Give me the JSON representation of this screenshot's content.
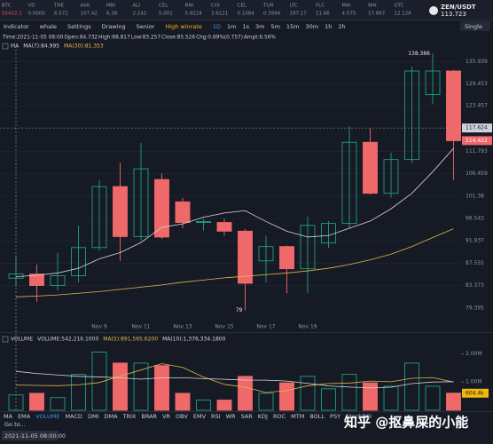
{
  "ticker_strip": [
    {
      "symbol": "BTC",
      "price": "55432.1"
    },
    {
      "symbol": "VD",
      "price": "0.0000"
    },
    {
      "symbol": "THE",
      "price": "6.572"
    },
    {
      "symbol": "AVA",
      "price": "107.42"
    },
    {
      "symbol": "MBI",
      "price": "6.38"
    },
    {
      "symbol": "ALI",
      "price": "2.242"
    },
    {
      "symbol": "CEL",
      "price": "5.001"
    },
    {
      "symbol": "RNI",
      "price": "5.8224"
    },
    {
      "symbol": "COI",
      "price": "3.6121"
    },
    {
      "symbol": "CEL",
      "price": "0.1084"
    },
    {
      "symbol": "TLM",
      "price": "0.3994"
    },
    {
      "symbol": "LTC",
      "price": "197.17"
    },
    {
      "symbol": "FLC",
      "price": "11.66"
    },
    {
      "symbol": "MAI",
      "price": "4.575"
    },
    {
      "symbol": "WH",
      "price": "17.867"
    },
    {
      "symbol": "GTC",
      "price": "12.128"
    }
  ],
  "header": {
    "pair": "ZEN/USDT",
    "price": "113.723"
  },
  "toolbar": {
    "items": [
      "Indicator",
      "whale",
      "Settings",
      "Drawing",
      "Senior",
      "High winrate",
      "1D",
      "1m",
      "1s",
      "3m",
      "5m",
      "15m",
      "30m",
      "1h",
      "2h"
    ],
    "mode": "Single"
  },
  "info": [
    "Time:2021-11-05 08:00",
    "Open:84.732",
    "High:88.817",
    "Low:83.257",
    "Close:85.526",
    "Chg:0.89%(0.757)",
    "Ampt:6.56%"
  ],
  "indicator_tabs": [
    "MA",
    "EMA",
    "VOLUME",
    "MACD",
    "DMI",
    "DMA",
    "TRIX",
    "BRAR",
    "VR",
    "OBV",
    "EMV",
    "RSI",
    "WR",
    "SAR",
    "KDJ",
    "ROC",
    "MTM",
    "BOLL",
    "PSY",
    "StochRSI"
  ],
  "footer": {
    "time": "2021-11-05 08:00:00",
    "goto": "Go to..."
  },
  "watermark": "知乎 @抠鼻屎的小能",
  "chart_data": [
    {
      "type": "candlestick",
      "legend_title": "MA",
      "categories": [
        null,
        null,
        null,
        null,
        "Nov 9",
        null,
        "Nov 11",
        null,
        "Nov 13",
        null,
        "Nov 15",
        null,
        "Nov 17",
        null,
        "Nov 19",
        null,
        null,
        null,
        null,
        null,
        null,
        null
      ],
      "open": [
        84.732,
        85.5,
        83.4,
        85.2,
        90.6,
        103.5,
        92.8,
        105.1,
        100.1,
        95.7,
        95.7,
        93.9,
        88.0,
        90.8,
        86.5,
        91.5,
        95.5,
        114.0,
        102.0,
        109.8,
        126.5,
        133.2
      ],
      "high": [
        88.817,
        87.3,
        89.6,
        95.0,
        105.0,
        109.0,
        113.8,
        106.5,
        101.0,
        96.5,
        96.5,
        94.3,
        93.0,
        91.0,
        97.0,
        96.0,
        118.0,
        117.6,
        111.5,
        134.5,
        138.366,
        133.5
      ],
      "low": [
        83.257,
        80.5,
        82.5,
        84.0,
        90.0,
        88.0,
        92.0,
        92.3,
        94.5,
        94.0,
        93.0,
        79,
        84.0,
        82.0,
        82.0,
        90.5,
        94.5,
        101.7,
        101.0,
        109.0,
        124.0,
        105.0
      ],
      "close": [
        85.526,
        83.4,
        85.2,
        90.6,
        103.5,
        92.8,
        107.6,
        92.7,
        95.7,
        95.9,
        93.9,
        83.8,
        90.8,
        86.5,
        95.1,
        95.5,
        114.0,
        102.0,
        109.8,
        133.2,
        133.2,
        114.422
      ],
      "up_color": "#1f9f80",
      "down_color": "#f0696a",
      "ma_lines": [
        {
          "legend": "MA(7):84.995",
          "color": "#d8d8d8",
          "values": [
            84.995,
            85.3,
            85.7,
            86.6,
            88.4,
            89.6,
            91.6,
            94.7,
            95.4,
            96.8,
            97.7,
            98.2,
            95.9,
            93.9,
            92.7,
            93.0,
            94.5,
            96.0,
            98.6,
            102.0,
            106.9,
            112.5
          ]
        },
        {
          "legend": "MA(30):81.353",
          "color": "#e0b84c",
          "values": [
            81.353,
            81.5,
            81.7,
            82.0,
            82.3,
            82.7,
            83.1,
            83.5,
            84.0,
            84.4,
            84.8,
            85.1,
            85.4,
            85.7,
            86.1,
            86.6,
            87.3,
            88.2,
            89.3,
            90.8,
            92.6,
            94.4
          ]
        }
      ],
      "log": true,
      "grid": true,
      "ylim": [
        77.4,
        139.0
      ],
      "yticks": [
        79.395,
        83.373,
        87.555,
        91.937,
        96.543,
        101.38,
        106.459,
        111.793,
        123.457,
        129.453,
        135.939
      ],
      "crosshair": 117.624
    },
    {
      "type": "bar",
      "title": "VOLUME",
      "values": [
        542216.1,
        600000,
        450000,
        1270000,
        2060000,
        1670000,
        1670000,
        1580000,
        600000,
        360000,
        360000,
        1200000,
        600000,
        970000,
        1200000,
        760000,
        1270000,
        970000,
        850000,
        1670000,
        850000,
        604400
      ],
      "ma_lines": [
        {
          "legend": "MA(5):891,565.6200",
          "color": "#e0b84c",
          "values": [
            891565.62,
            880000,
            870000,
            900000,
            980000,
            1210000,
            1424000,
            1650000,
            1516000,
            1176000,
            914000,
            820000,
            624000,
            698000,
            866000,
            946000,
            960000,
            1034000,
            1010000,
            1132000,
            1156000,
            1000000
          ]
        },
        {
          "legend": "MA(10):1,376,334.1800",
          "color": "#d8d8d8",
          "values": [
            1376334.18,
            1300000,
            1250000,
            1200000,
            1180000,
            1150000,
            1100000,
            1150000,
            1150000,
            1120000,
            1096000,
            1069000,
            1064000,
            1034000,
            951000,
            860000,
            820000,
            790000,
            816000,
            942000,
            1000000,
            1010000
          ]
        }
      ],
      "legend_value": "VOLUME:542,216.1000",
      "ylim": [
        0,
        2200000
      ],
      "yticks": [
        {
          "value": 1000000,
          "label": "1.00M"
        },
        {
          "value": 2000000,
          "label": "2.00M"
        }
      ],
      "current": {
        "value": 604400,
        "label": "604.4k"
      }
    }
  ]
}
